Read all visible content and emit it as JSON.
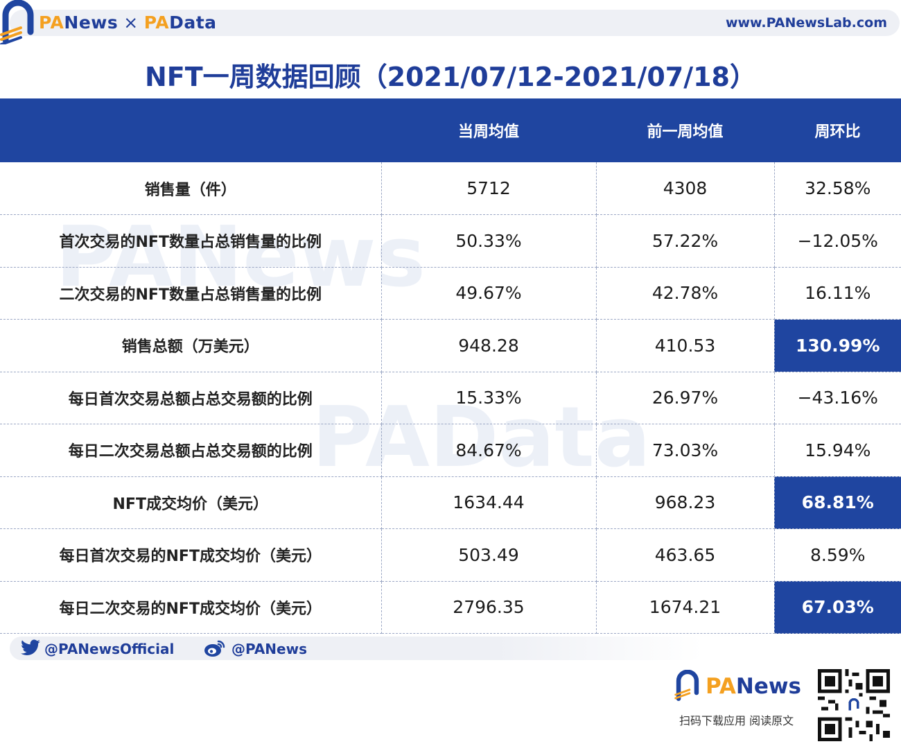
{
  "header": {
    "brand_pa1": "PA",
    "brand_news": "News",
    "brand_times": "×",
    "brand_pa2": "PA",
    "brand_data": "Data",
    "site_url": "www.PANewsLab.com"
  },
  "title": "NFT一周数据回顾（2021/07/12-2021/07/18）",
  "watermarks": {
    "top": "PANews",
    "middle": "PAData"
  },
  "table": {
    "columns": [
      "",
      "当周均值",
      "前一周均值",
      "周环比"
    ],
    "rows": [
      {
        "label": "销售量（件）",
        "current": "5712",
        "previous": "4308",
        "change": "32.58%",
        "highlight": false
      },
      {
        "label": "首次交易的NFT数量占总销售量的比例",
        "current": "50.33%",
        "previous": "57.22%",
        "change": "−12.05%",
        "highlight": false
      },
      {
        "label": "二次交易的NFT数量占总销售量的比例",
        "current": "49.67%",
        "previous": "42.78%",
        "change": "16.11%",
        "highlight": false
      },
      {
        "label": "销售总额（万美元）",
        "current": "948.28",
        "previous": "410.53",
        "change": "130.99%",
        "highlight": true
      },
      {
        "label": "每日首次交易总额占总交易额的比例",
        "current": "15.33%",
        "previous": "26.97%",
        "change": "−43.16%",
        "highlight": false
      },
      {
        "label": "每日二次交易总额占总交易额的比例",
        "current": "84.67%",
        "previous": "73.03%",
        "change": "15.94%",
        "highlight": false
      },
      {
        "label": "NFT成交均价（美元）",
        "current": "1634.44",
        "previous": "968.23",
        "change": "68.81%",
        "highlight": true
      },
      {
        "label": "每日首次交易的NFT成交均价（美元）",
        "current": "503.49",
        "previous": "463.65",
        "change": "8.59%",
        "highlight": false
      },
      {
        "label": "每日二次交易的NFT成交均价（美元）",
        "current": "2796.35",
        "previous": "1674.21",
        "change": "67.03%",
        "highlight": true
      }
    ]
  },
  "social": {
    "twitter": "@PANewsOfficial",
    "weibo": "@PANews"
  },
  "footer": {
    "brand_pa": "PA",
    "brand_news": "News",
    "caption": "扫码下载应用  阅读原文"
  },
  "colors": {
    "primary": "#1f45a0",
    "accent": "#f4a020",
    "header_bg": "#eef0f5"
  }
}
